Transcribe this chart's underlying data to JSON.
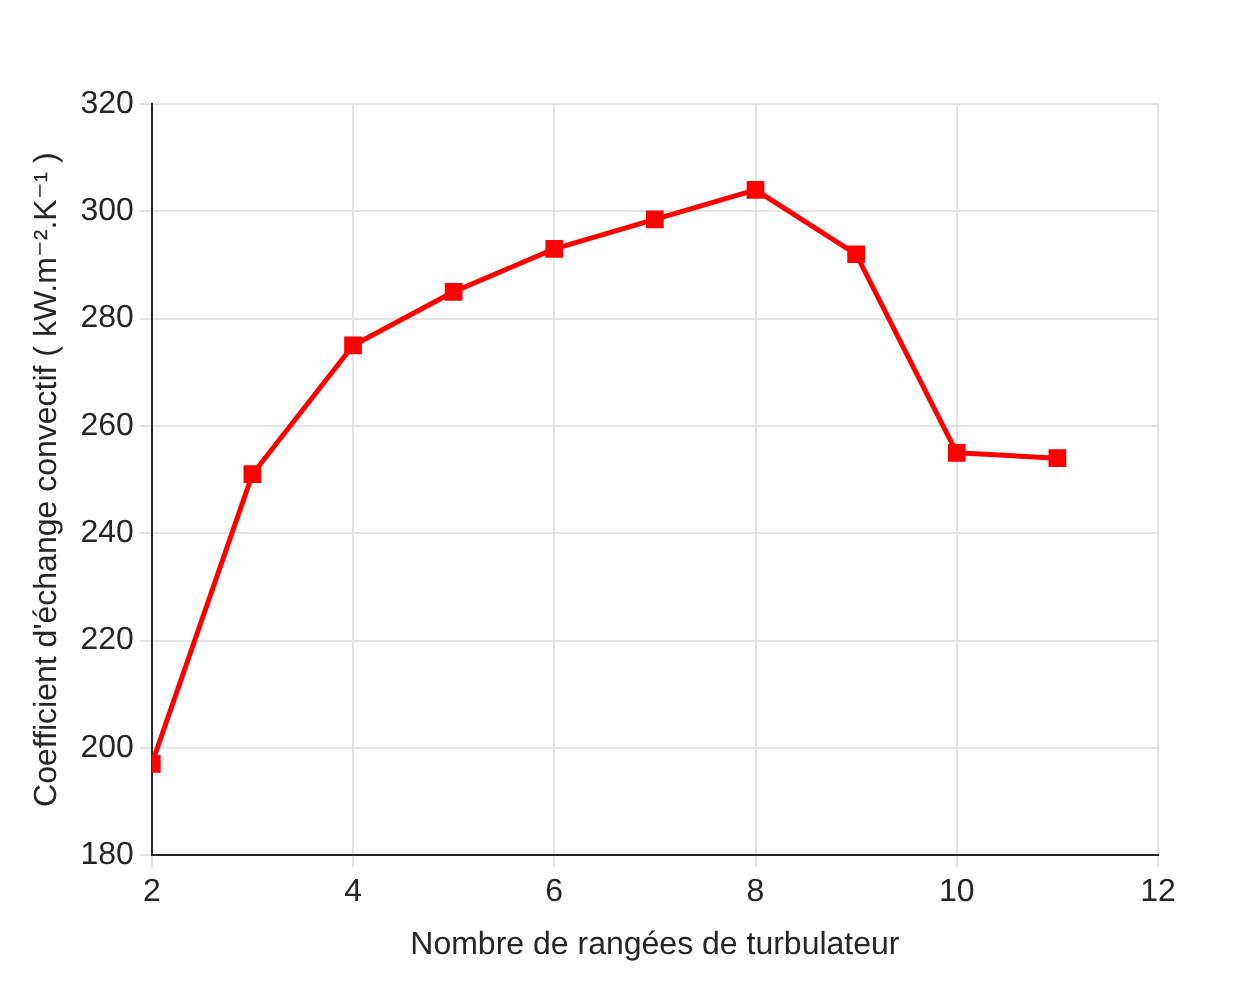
{
  "chart_data": {
    "type": "line",
    "xlabel": "Nombre de rangées de turbulateur",
    "ylabel": "Coefficient d'échange convectif ( kW.m⁻².K⁻¹ )",
    "x": [
      2,
      3,
      4,
      5,
      6,
      7,
      8,
      9,
      10,
      11
    ],
    "series": [
      {
        "color": "#ff0000",
        "values": [
          197,
          251,
          275,
          285,
          293,
          298.5,
          304,
          292,
          255,
          254
        ]
      }
    ],
    "xlim": [
      2,
      12
    ],
    "xticks": [
      2,
      4,
      6,
      8,
      10,
      12
    ],
    "ylim": [
      180,
      320
    ],
    "yticks": [
      180,
      200,
      220,
      240,
      260,
      280,
      300,
      320
    ],
    "grid": true,
    "legend": false,
    "marker": "square",
    "line_style": "solid"
  }
}
